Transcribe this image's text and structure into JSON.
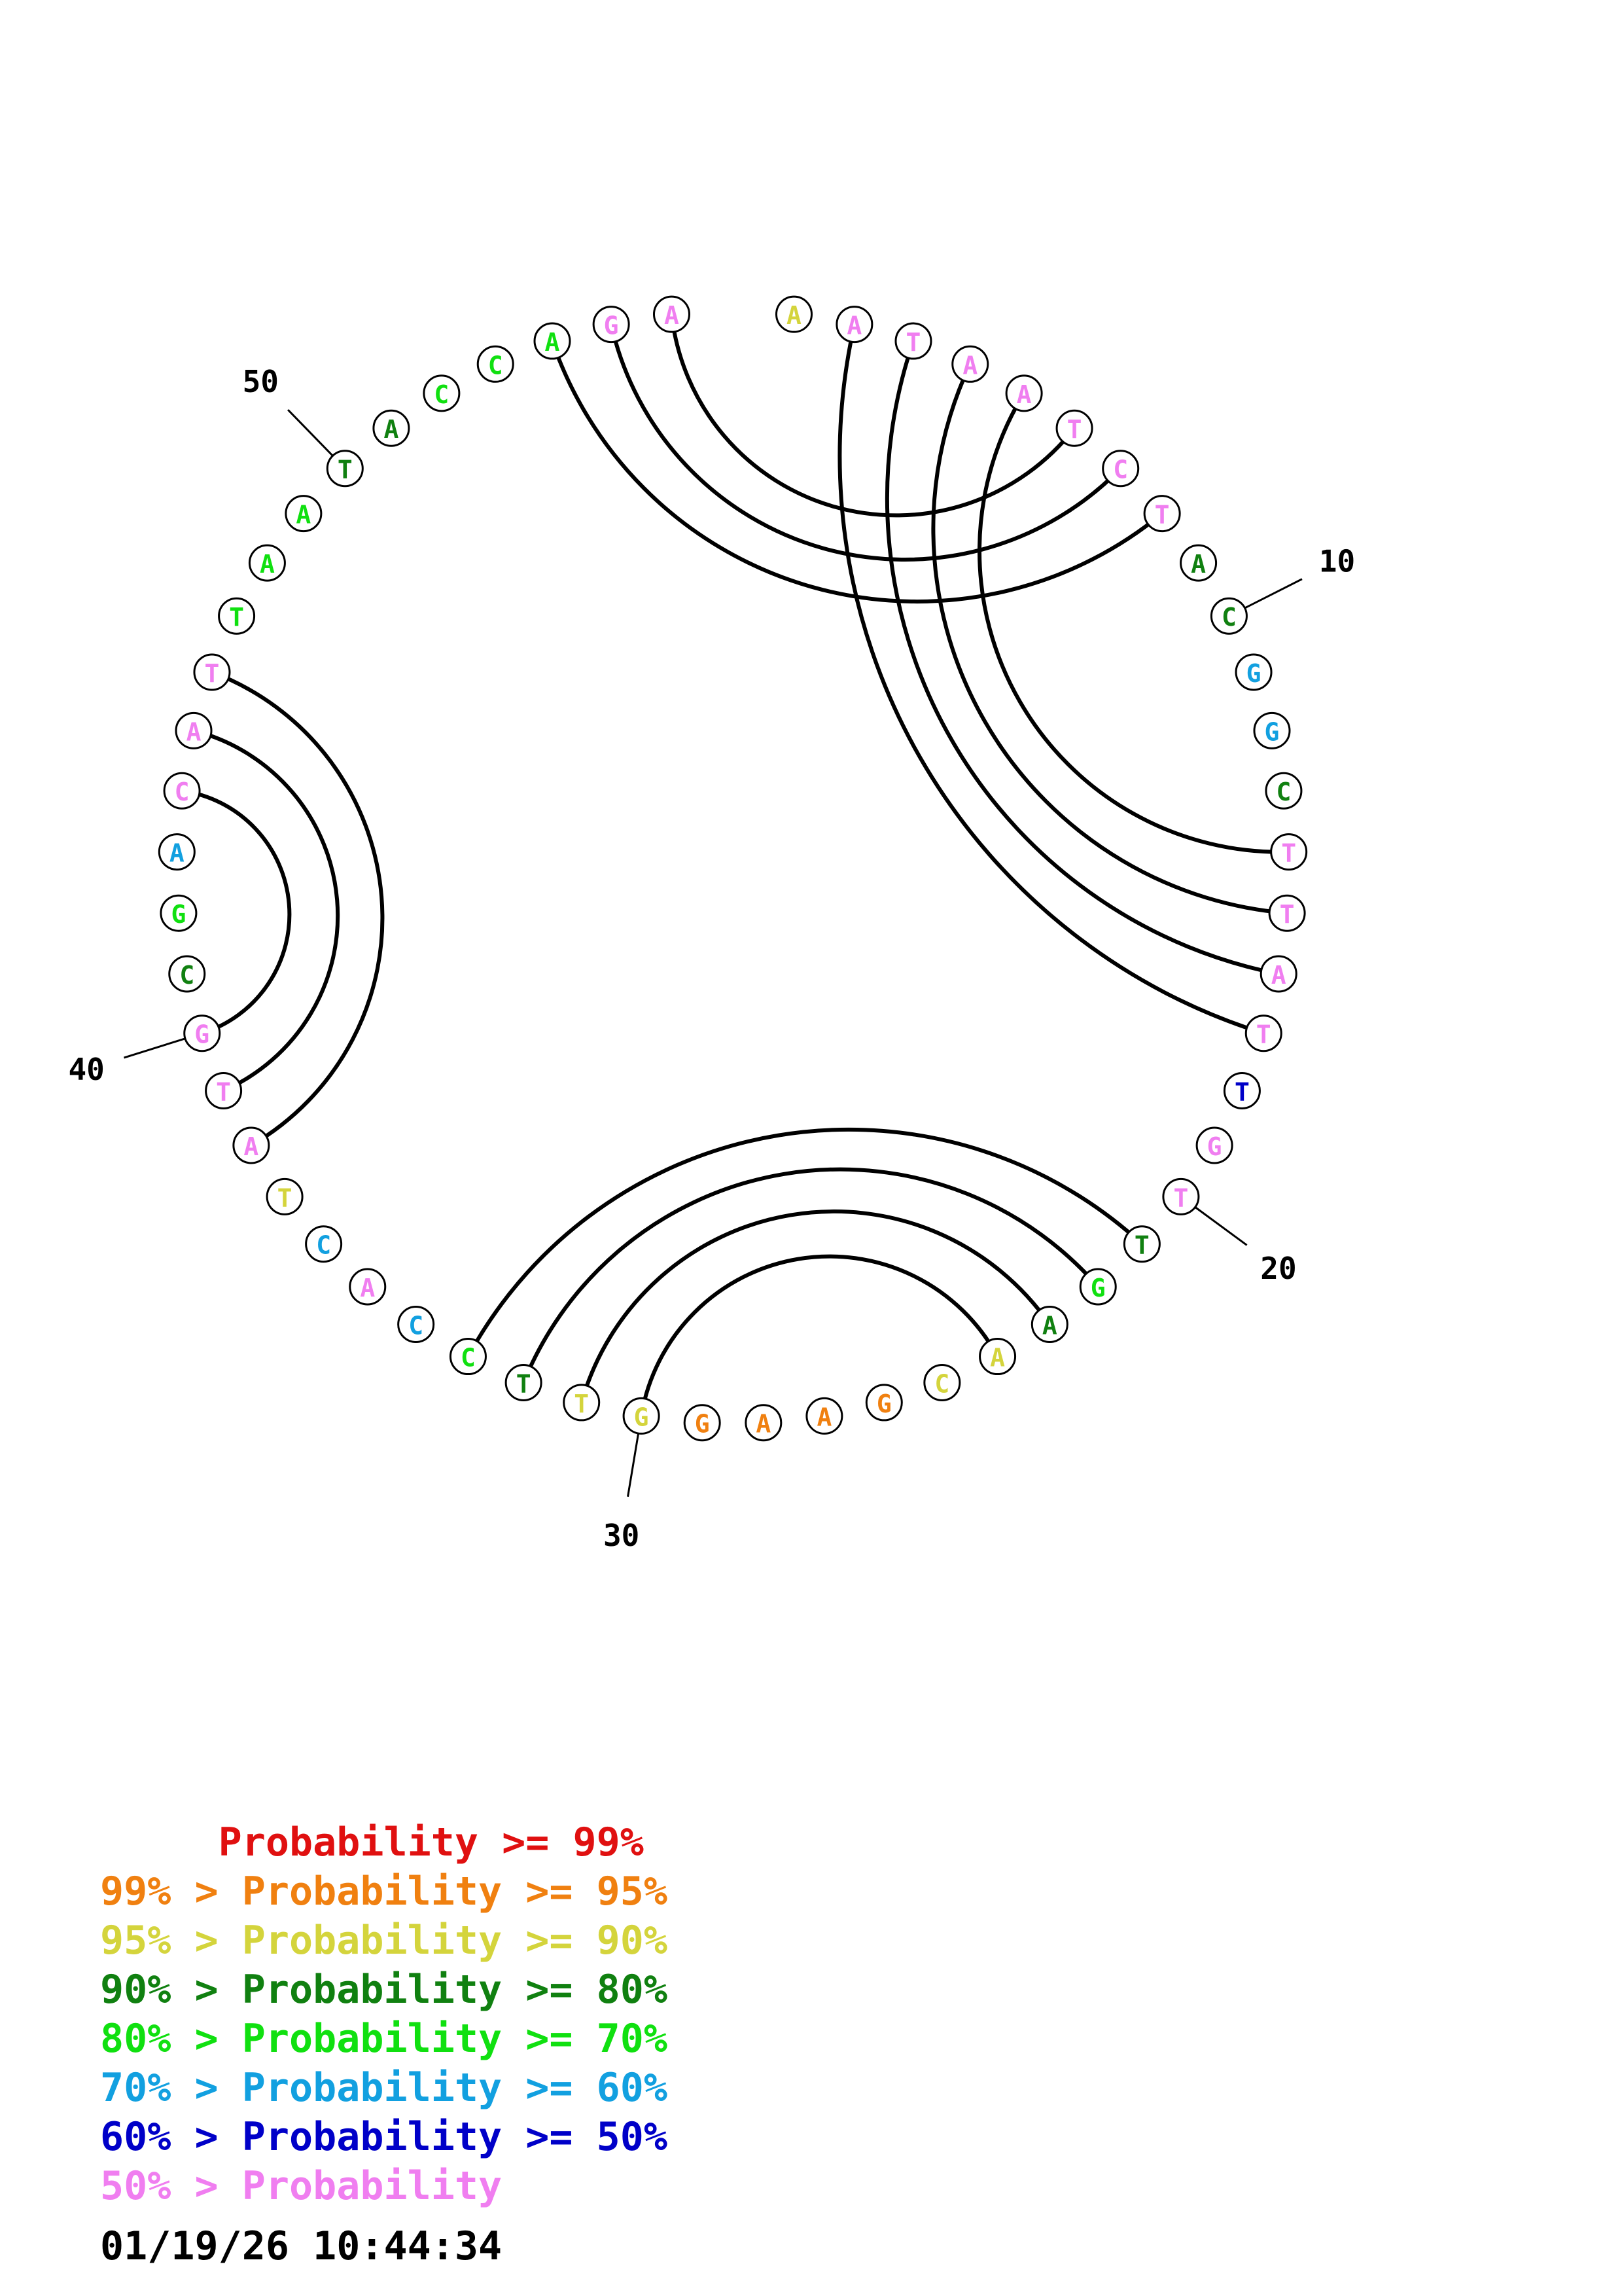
{
  "structure": {
    "sequence": [
      "A",
      "A",
      "T",
      "A",
      "A",
      "T",
      "C",
      "T",
      "A",
      "C",
      "G",
      "G",
      "C",
      "T",
      "T",
      "A",
      "T",
      "T",
      "G",
      "T",
      "T",
      "G",
      "A",
      "A",
      "C",
      "G",
      "A",
      "A",
      "G",
      "G",
      "T",
      "T",
      "C",
      "C",
      "A",
      "C",
      "T",
      "A",
      "T",
      "G",
      "C",
      "G",
      "A",
      "C",
      "A",
      "T",
      "T",
      "A",
      "A",
      "T",
      "A",
      "C",
      "C",
      "A",
      "G",
      "A"
    ],
    "colors": [
      "#d4d43c",
      "#f07ef0",
      "#f07ef0",
      "#f07ef0",
      "#f07ef0",
      "#f07ef0",
      "#f07ef0",
      "#f07ef0",
      "#108010",
      "#108010",
      "#12a0e0",
      "#12a0e0",
      "#108010",
      "#f07ef0",
      "#f07ef0",
      "#f07ef0",
      "#f07ef0",
      "#0000c8",
      "#f07ef0",
      "#f07ef0",
      "#108010",
      "#10e010",
      "#108010",
      "#d4d43c",
      "#d4d43c",
      "#f08010",
      "#f08010",
      "#f08010",
      "#f08010",
      "#d4d43c",
      "#d4d43c",
      "#108010",
      "#10e010",
      "#12a0e0",
      "#f07ef0",
      "#12a0e0",
      "#d4d43c",
      "#f07ef0",
      "#f07ef0",
      "#f07ef0",
      "#108010",
      "#10e010",
      "#12a0e0",
      "#f07ef0",
      "#f07ef0",
      "#f07ef0",
      "#10e010",
      "#10e010",
      "#10e010",
      "#108010",
      "#108010",
      "#10e010",
      "#10e010",
      "#10e010",
      "#f07ef0",
      "#f07ef0"
    ],
    "pairs": [
      [
        2,
        17
      ],
      [
        3,
        16
      ],
      [
        4,
        15
      ],
      [
        5,
        14
      ],
      [
        6,
        56
      ],
      [
        7,
        55
      ],
      [
        8,
        54
      ],
      [
        21,
        33
      ],
      [
        22,
        32
      ],
      [
        23,
        31
      ],
      [
        24,
        30
      ],
      [
        38,
        46
      ],
      [
        39,
        45
      ],
      [
        40,
        44
      ]
    ],
    "tick_labels": [
      {
        "position": 10,
        "label": "10"
      },
      {
        "position": 20,
        "label": "20"
      },
      {
        "position": 30,
        "label": "30"
      },
      {
        "position": 40,
        "label": "40"
      },
      {
        "position": 50,
        "label": "50"
      }
    ]
  },
  "legend": [
    {
      "text": "     Probability >= 99%",
      "color": "#e01010"
    },
    {
      "text": "99% > Probability >= 95%",
      "color": "#f08010"
    },
    {
      "text": "95% > Probability >= 90%",
      "color": "#d4d43c"
    },
    {
      "text": "90% > Probability >= 80%",
      "color": "#108010"
    },
    {
      "text": "80% > Probability >= 70%",
      "color": "#10e010"
    },
    {
      "text": "70% > Probability >= 60%",
      "color": "#12a0e0"
    },
    {
      "text": "60% > Probability >= 50%",
      "color": "#0000c8"
    },
    {
      "text": "50% > Probability",
      "color": "#f07ef0"
    }
  ],
  "timestamp": "01/19/26 10:44:34"
}
